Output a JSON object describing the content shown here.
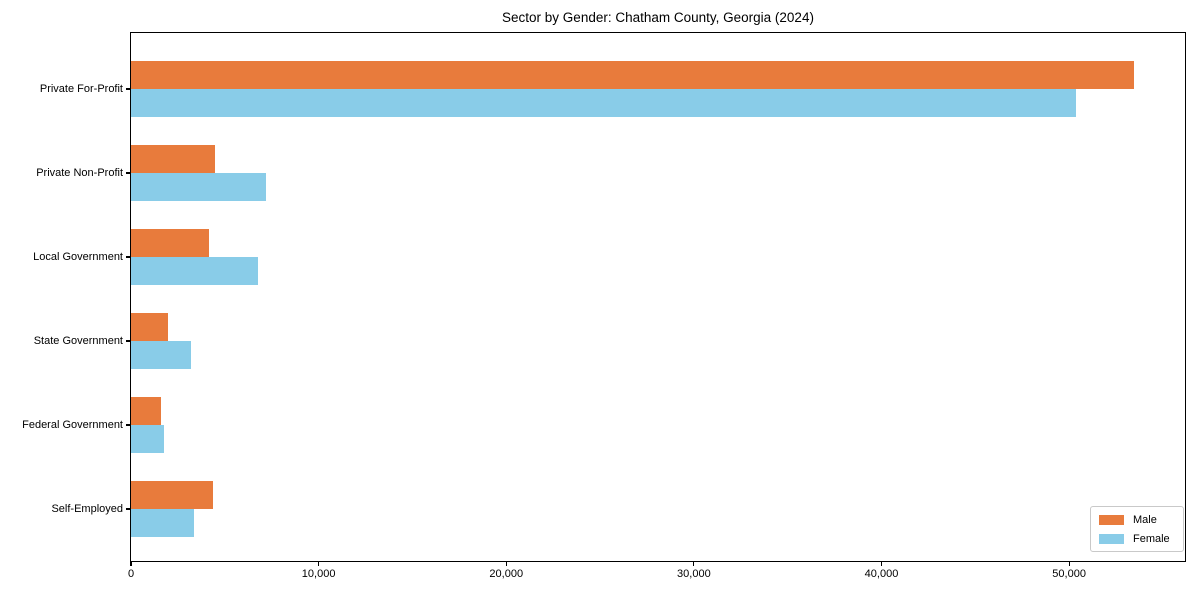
{
  "chart_data": {
    "type": "bar",
    "orientation": "horizontal",
    "title": "Sector by Gender: Chatham County, Georgia (2024)",
    "categories": [
      "Private For-Profit",
      "Private Non-Profit",
      "Local Government",
      "State Government",
      "Federal Government",
      "Self-Employed"
    ],
    "series": [
      {
        "name": "Male",
        "color": "#E87B3C",
        "values": [
          53500,
          4500,
          4200,
          2000,
          1650,
          4400
        ]
      },
      {
        "name": "Female",
        "color": "#89CCE8",
        "values": [
          50400,
          7200,
          6800,
          3250,
          1800,
          3400
        ]
      }
    ],
    "xlabel": "",
    "ylabel": "",
    "xlim": [
      0,
      56175
    ],
    "xticks": [
      0,
      10000,
      20000,
      30000,
      40000,
      50000
    ],
    "xtick_labels": [
      "0",
      "10,000",
      "20,000",
      "30,000",
      "40,000",
      "50,000"
    ],
    "grid": false,
    "legend_position": "lower right",
    "axis_color": "#000000"
  }
}
